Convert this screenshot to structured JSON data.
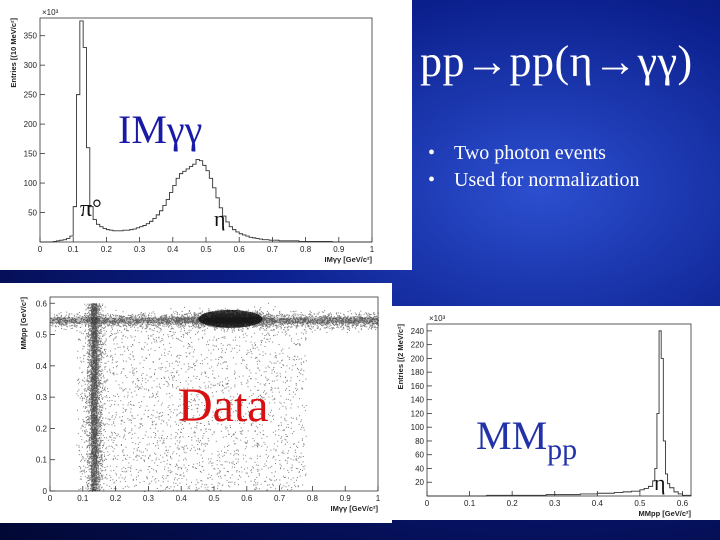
{
  "slide": {
    "title": "pp→pp(η→γγ)",
    "bullets": [
      "Two photon events",
      "Used for normalization"
    ],
    "label_im": "IMγγ",
    "label_pi0": "π°",
    "label_eta_1": "η",
    "label_data": "Data",
    "label_mm_main": "MM",
    "label_mm_sub": "pp",
    "label_eta_2": "η",
    "colors": {
      "background": "#0b1f8c",
      "title": "#ffffff",
      "data_label": "#d81010",
      "im_label": "#1a1aa8",
      "mm_label": "#2233aa"
    }
  },
  "chart_data": [
    {
      "type": "area",
      "id": "im_gg_hist",
      "xlabel": "IMγγ [GeV/c²]",
      "ylabel": "Entries [(10 MeV/c²]",
      "exponent_label": "×10³",
      "xlim": [
        0,
        1
      ],
      "ylim": [
        0,
        380
      ],
      "xticks": [
        "0",
        "0.1",
        "0.2",
        "0.3",
        "0.4",
        "0.5",
        "0.6",
        "0.7",
        "0.8",
        "0.9",
        "1"
      ],
      "yticks": [
        "50",
        "100",
        "150",
        "200",
        "250",
        "300",
        "350"
      ],
      "x": [
        0.0,
        0.01,
        0.02,
        0.03,
        0.04,
        0.05,
        0.06,
        0.07,
        0.08,
        0.09,
        0.1,
        0.11,
        0.12,
        0.13,
        0.14,
        0.15,
        0.16,
        0.17,
        0.18,
        0.19,
        0.2,
        0.21,
        0.22,
        0.23,
        0.24,
        0.25,
        0.26,
        0.27,
        0.28,
        0.29,
        0.3,
        0.31,
        0.32,
        0.33,
        0.34,
        0.35,
        0.36,
        0.37,
        0.38,
        0.39,
        0.4,
        0.41,
        0.42,
        0.43,
        0.44,
        0.45,
        0.46,
        0.47,
        0.48,
        0.49,
        0.5,
        0.51,
        0.52,
        0.53,
        0.54,
        0.55,
        0.56,
        0.57,
        0.58,
        0.59,
        0.6,
        0.61,
        0.62,
        0.63,
        0.64,
        0.65,
        0.66,
        0.67,
        0.68,
        0.69,
        0.7,
        0.71,
        0.72,
        0.73,
        0.74,
        0.75,
        0.76,
        0.77,
        0.78,
        0.79,
        0.8,
        0.81,
        0.82,
        0.83,
        0.84,
        0.85,
        0.86,
        0.87,
        0.88,
        0.89,
        0.9,
        0.91,
        0.92,
        0.93,
        0.94,
        0.95,
        0.96,
        0.97,
        0.98,
        0.99
      ],
      "values": [
        0,
        0,
        0,
        0,
        1,
        2,
        3,
        4,
        6,
        10,
        60,
        250,
        375,
        330,
        160,
        60,
        38,
        30,
        26,
        23,
        21,
        20,
        19,
        19,
        19,
        20,
        20,
        21,
        22,
        24,
        26,
        28,
        31,
        35,
        40,
        46,
        53,
        62,
        72,
        84,
        96,
        108,
        116,
        120,
        124,
        128,
        132,
        140,
        138,
        130,
        121,
        108,
        92,
        75,
        58,
        44,
        34,
        26,
        21,
        17,
        14,
        12,
        10,
        8,
        7,
        6,
        5,
        4,
        4,
        3,
        3,
        3,
        2,
        2,
        2,
        2,
        2,
        2,
        1,
        1,
        1,
        1,
        1,
        1,
        1,
        1,
        1,
        1,
        0,
        0,
        0,
        0,
        0,
        0,
        0,
        0,
        0,
        0,
        0,
        0
      ]
    },
    {
      "type": "heatmap",
      "id": "mmpp_vs_imgg",
      "xlabel": "IMγγ [GeV/c²]",
      "ylabel": "MMpp [GeV/c²]",
      "xlim": [
        0,
        1
      ],
      "ylim": [
        0,
        0.62
      ],
      "xticks": [
        "0",
        "0.1",
        "0.2",
        "0.3",
        "0.4",
        "0.5",
        "0.6",
        "0.7",
        "0.8",
        "0.9",
        "1"
      ],
      "yticks": [
        "0",
        "0.1",
        "0.2",
        "0.3",
        "0.4",
        "0.5",
        "0.6"
      ],
      "features": [
        {
          "shape": "vertical band",
          "x": 0.135,
          "y_range": [
            0.0,
            0.6
          ]
        },
        {
          "shape": "horizontal band",
          "y": 0.545,
          "x_range": [
            0.0,
            1.0
          ]
        },
        {
          "shape": "peak",
          "x": 0.55,
          "y": 0.55
        }
      ]
    },
    {
      "type": "area",
      "id": "mmpp_hist",
      "xlabel": "MMpp [GeV/c²]",
      "ylabel": "Entries [(2 MeV/c²]",
      "exponent_label": "×10³",
      "xlim": [
        0,
        0.62
      ],
      "ylim": [
        0,
        250
      ],
      "xticks": [
        "0",
        "0.1",
        "0.2",
        "0.3",
        "0.4",
        "0.5",
        "0.6"
      ],
      "yticks": [
        "20",
        "40",
        "60",
        "80",
        "100",
        "120",
        "140",
        "160",
        "180",
        "200",
        "220",
        "240"
      ],
      "x": [
        0.0,
        0.02,
        0.04,
        0.06,
        0.08,
        0.1,
        0.12,
        0.14,
        0.16,
        0.18,
        0.2,
        0.22,
        0.24,
        0.26,
        0.28,
        0.3,
        0.32,
        0.34,
        0.36,
        0.38,
        0.4,
        0.42,
        0.44,
        0.46,
        0.48,
        0.5,
        0.51,
        0.52,
        0.53,
        0.535,
        0.54,
        0.545,
        0.55,
        0.555,
        0.56,
        0.565,
        0.57,
        0.58,
        0.59,
        0.6,
        0.62
      ],
      "values": [
        0,
        0,
        0,
        0,
        0,
        0,
        0,
        1,
        1,
        1,
        1,
        1,
        1,
        1,
        2,
        2,
        2,
        2,
        3,
        3,
        4,
        4,
        5,
        6,
        7,
        9,
        11,
        14,
        22,
        40,
        120,
        240,
        200,
        80,
        32,
        18,
        12,
        6,
        3,
        1,
        0
      ]
    }
  ]
}
